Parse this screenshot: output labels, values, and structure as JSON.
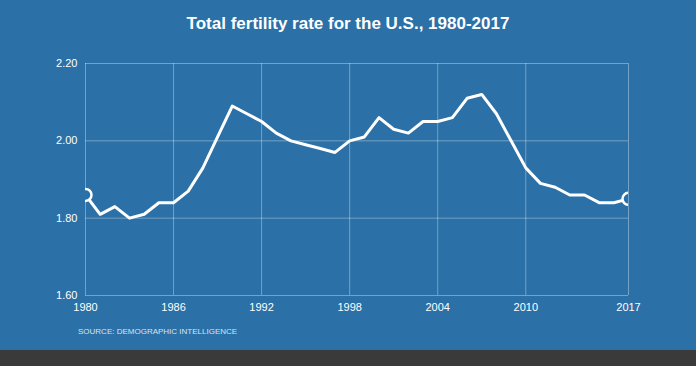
{
  "chart_data": {
    "type": "line",
    "title": "Total fertility rate for the U.S., 1980-2017",
    "source": "SOURCE: DEMOGRAPHIC INTELLIGENCE",
    "x": [
      1980,
      1981,
      1982,
      1983,
      1984,
      1985,
      1986,
      1987,
      1988,
      1989,
      1990,
      1991,
      1992,
      1993,
      1994,
      1995,
      1996,
      1997,
      1998,
      1999,
      2000,
      2001,
      2002,
      2003,
      2004,
      2005,
      2006,
      2007,
      2008,
      2009,
      2010,
      2011,
      2012,
      2013,
      2014,
      2015,
      2016,
      2017
    ],
    "values": [
      1.86,
      1.81,
      1.83,
      1.8,
      1.81,
      1.84,
      1.84,
      1.87,
      1.93,
      2.01,
      2.09,
      2.07,
      2.05,
      2.02,
      2.0,
      1.99,
      1.98,
      1.97,
      2.0,
      2.01,
      2.06,
      2.03,
      2.02,
      2.05,
      2.05,
      2.06,
      2.11,
      2.12,
      2.07,
      2.0,
      1.93,
      1.89,
      1.88,
      1.86,
      1.86,
      1.84,
      1.84,
      1.85
    ],
    "color": "#ffffff",
    "xlim": [
      1980,
      2017
    ],
    "ylim": [
      1.6,
      2.2
    ],
    "xticks": [
      1980,
      1986,
      1992,
      1998,
      2004,
      2010,
      2017
    ],
    "yticks": [
      {
        "value": 1.6,
        "label": "1.60"
      },
      {
        "value": 1.8,
        "label": "1.80"
      },
      {
        "value": 2.0,
        "label": "2.00"
      },
      {
        "value": 2.2,
        "label": "2.20"
      }
    ],
    "grid": true
  }
}
